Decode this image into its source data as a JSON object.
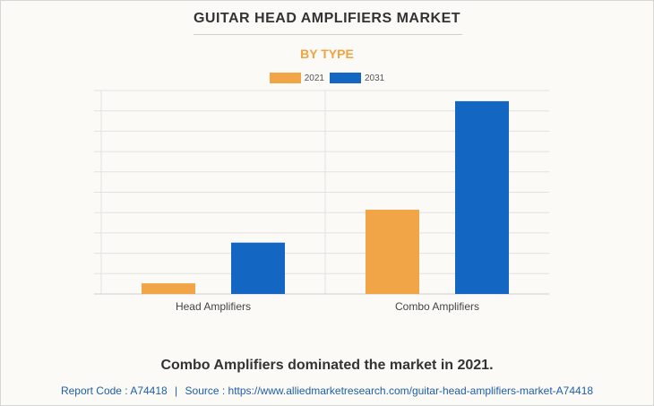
{
  "header": {
    "title": "GUITAR HEAD AMPLIFIERS MARKET",
    "subtitle": "BY TYPE"
  },
  "footer": {
    "headline": "Combo Amplifiers dominated the market in 2021.",
    "report_code_label": "Report Code : A74418",
    "separator": "|",
    "source_label": "Source : https://www.alliedmarketresearch.com/guitar-head-amplifiers-market-A74418"
  },
  "colors": {
    "series_2021": "#f2a546",
    "series_2031": "#1466c3",
    "subtitle": "#f0a33e",
    "grid": "#e2e2e2"
  },
  "chart_data": {
    "type": "bar",
    "title": "GUITAR HEAD AMPLIFIERS MARKET",
    "subtitle": "BY TYPE",
    "categories": [
      "Head Amplifiers",
      "Combo Amplifiers"
    ],
    "series": [
      {
        "name": "2021",
        "color": "#f2a546",
        "values": [
          0.55,
          4.35
        ]
      },
      {
        "name": "2031",
        "color": "#1466c3",
        "values": [
          2.65,
          9.95
        ]
      }
    ],
    "ylim": [
      0,
      10.5
    ],
    "y_gridlines": 10,
    "y_tick_labels_visible": false,
    "grid": true,
    "legend": "top-center",
    "xlabel": "",
    "ylabel": ""
  }
}
